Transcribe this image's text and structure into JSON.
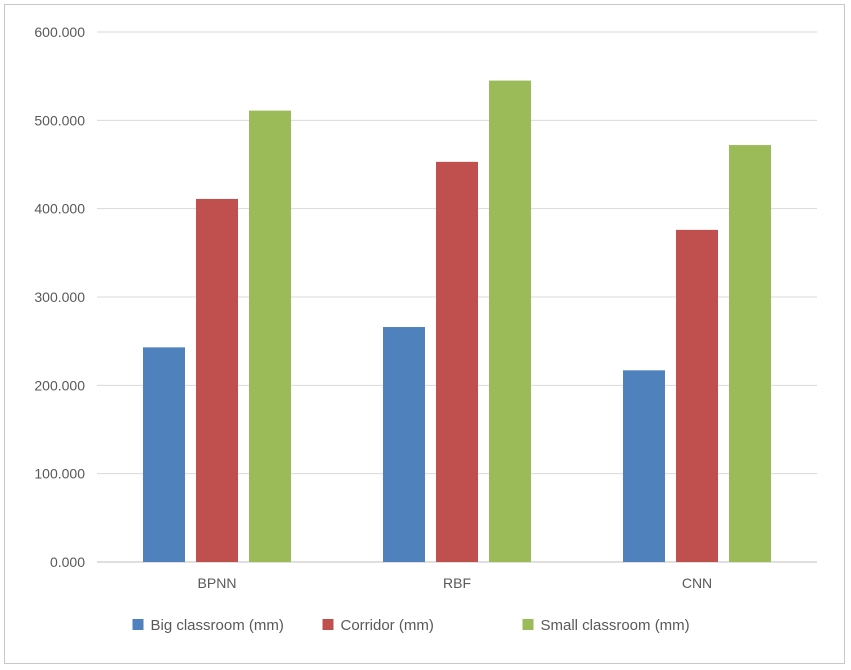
{
  "chart_data": {
    "type": "bar",
    "title": "",
    "xlabel": "",
    "ylabel": "",
    "categories": [
      "BPNN",
      "RBF",
      "CNN"
    ],
    "series": [
      {
        "name": "Big classroom (mm)",
        "color": "#4f81bd",
        "values": [
          243,
          266,
          217
        ]
      },
      {
        "name": "Corridor (mm)",
        "color": "#c0504d",
        "values": [
          411,
          453,
          376
        ]
      },
      {
        "name": "Small classroom (mm)",
        "color": "#9bbb59",
        "values": [
          511,
          545,
          472
        ]
      }
    ],
    "ylim": [
      0,
      600
    ],
    "yticks": [
      0,
      100,
      200,
      300,
      400,
      500,
      600
    ],
    "ytick_labels": [
      "0.000",
      "100.000",
      "200.000",
      "300.000",
      "400.000",
      "500.000",
      "600.000"
    ],
    "grid": true,
    "legend_position": "bottom"
  }
}
